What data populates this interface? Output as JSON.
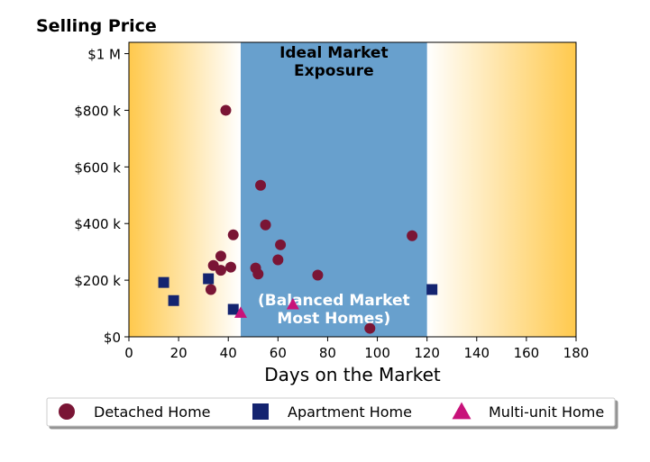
{
  "chart_data": {
    "type": "scatter",
    "title": "Selling Price",
    "xlabel": "Days on the Market",
    "ylabel": "",
    "xlim": [
      0,
      180
    ],
    "ylim": [
      0,
      1040000
    ],
    "x_ticks": [
      0,
      20,
      40,
      60,
      80,
      100,
      120,
      140,
      160,
      180
    ],
    "y_ticks": [
      {
        "value": 0,
        "label": "$0"
      },
      {
        "value": 200000,
        "label": "$200 k"
      },
      {
        "value": 400000,
        "label": "$400 k"
      },
      {
        "value": 600000,
        "label": "$600 k"
      },
      {
        "value": 800000,
        "label": "$800 k"
      },
      {
        "value": 1000000,
        "label": "$1 M"
      }
    ],
    "grid": false,
    "background": {
      "left_gradient": {
        "from_x": 0,
        "to_x": 45,
        "color": "#ffc94d"
      },
      "right_gradient": {
        "from_x": 120,
        "to_x": 180,
        "color": "#ffc94d"
      }
    },
    "ideal_band": {
      "x_range": [
        45,
        120
      ],
      "color": "#68a0cd",
      "label_top": [
        "Ideal Market",
        "Exposure"
      ],
      "label_bottom": [
        "(Balanced Market",
        "Most Homes)"
      ]
    },
    "series": [
      {
        "name": "Detached Home",
        "marker": "circle",
        "color": "#7a1535",
        "points": [
          {
            "x": 39,
            "y": 800000
          },
          {
            "x": 53,
            "y": 535000
          },
          {
            "x": 55,
            "y": 395000
          },
          {
            "x": 42,
            "y": 360000
          },
          {
            "x": 114,
            "y": 357000
          },
          {
            "x": 61,
            "y": 325000
          },
          {
            "x": 37,
            "y": 285000
          },
          {
            "x": 60,
            "y": 272000
          },
          {
            "x": 34,
            "y": 252000
          },
          {
            "x": 41,
            "y": 246000
          },
          {
            "x": 51,
            "y": 243000
          },
          {
            "x": 37,
            "y": 235000
          },
          {
            "x": 52,
            "y": 222000
          },
          {
            "x": 76,
            "y": 218000
          },
          {
            "x": 33,
            "y": 167000
          },
          {
            "x": 97,
            "y": 30000
          }
        ]
      },
      {
        "name": "Apartment Home",
        "marker": "square",
        "color": "#142470",
        "points": [
          {
            "x": 14,
            "y": 192000
          },
          {
            "x": 32,
            "y": 205000
          },
          {
            "x": 18,
            "y": 128000
          },
          {
            "x": 42,
            "y": 97000
          },
          {
            "x": 122,
            "y": 167000
          }
        ]
      },
      {
        "name": "Multi-unit Home",
        "marker": "triangle",
        "color": "#c8127a",
        "points": [
          {
            "x": 45,
            "y": 85000
          },
          {
            "x": 66,
            "y": 115000
          }
        ]
      }
    ],
    "legend": {
      "placement": "bottom",
      "ncol": 3
    }
  }
}
